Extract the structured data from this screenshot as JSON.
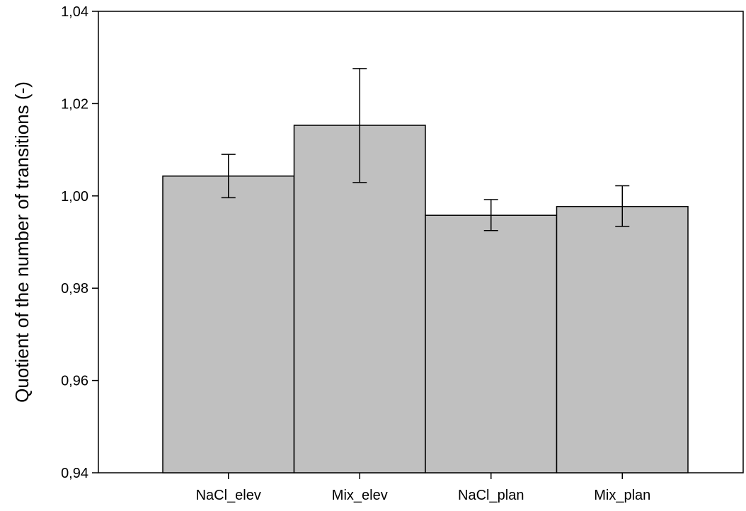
{
  "chart_data": {
    "type": "bar",
    "title": "",
    "xlabel": "",
    "ylabel": "Quotient of the number of transitions (-)",
    "categories": [
      "NaCl_elev",
      "Mix_elev",
      "NaCl_plan",
      "Mix_plan"
    ],
    "values": [
      1.0043,
      1.0153,
      0.9958,
      0.9977
    ],
    "error_low": [
      0.9996,
      1.0029,
      0.9925,
      0.9934
    ],
    "error_high": [
      1.009,
      1.0276,
      0.9992,
      1.0022
    ],
    "ylim": [
      0.94,
      1.04
    ],
    "yticks": [
      0.94,
      0.96,
      0.98,
      1.0,
      1.02,
      1.04
    ],
    "ytick_labels": [
      "0,94",
      "0,96",
      "0,98",
      "1,00",
      "1,02",
      "1,04"
    ],
    "grid": false,
    "legend": "none",
    "bar_color": "#c0c0c0",
    "edge_color": "#000000"
  }
}
